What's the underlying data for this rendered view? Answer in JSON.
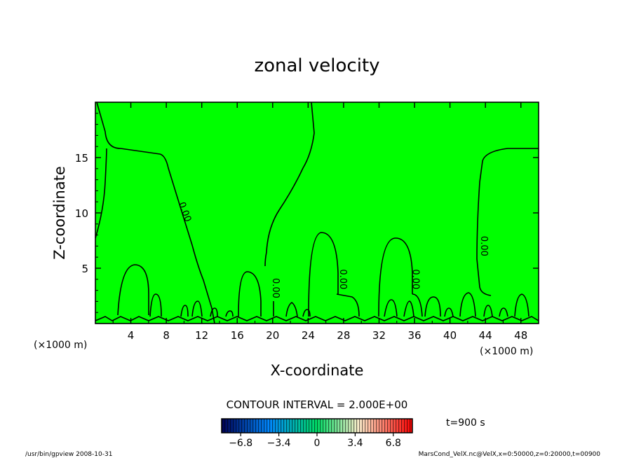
{
  "chart_data": {
    "type": "heatmap",
    "title": "zonal velocity",
    "xlabel": "X-coordinate",
    "ylabel": "Z-coordinate",
    "x_unit_left": "(×1000 m)",
    "x_unit_right": "(×1000 m)",
    "x_ticks": [
      4,
      8,
      12,
      16,
      20,
      24,
      28,
      32,
      36,
      40,
      44,
      48
    ],
    "y_ticks": [
      5,
      10,
      15
    ],
    "xlim": [
      0,
      50
    ],
    "ylim": [
      0,
      20
    ],
    "fill_color": "#00ff00",
    "contour_labels": [
      {
        "text": "0.00",
        "x": 9.8,
        "z": 10.0,
        "rotate": 70
      },
      {
        "text": "0.00",
        "x": 20.0,
        "z": 3.2,
        "rotate": 90
      },
      {
        "text": "0.00",
        "x": 27.6,
        "z": 4.0,
        "rotate": 90
      },
      {
        "text": "0.00",
        "x": 35.8,
        "z": 4.0,
        "rotate": 90
      },
      {
        "text": "0.00",
        "x": 43.5,
        "z": 7.0,
        "rotate": 90
      }
    ],
    "contour_interval_text": "CONTOUR INTERVAL = 2.000E+00",
    "time_label": "t=900 s",
    "colorbar": {
      "min": -8.5,
      "max": 8.5,
      "tick_values": [
        -6.8,
        -3.4,
        0,
        3.4,
        6.8
      ],
      "tick_labels": [
        "−6.8",
        "−3.4",
        "0",
        "3.4",
        "6.8"
      ],
      "colors": [
        "#000055",
        "#00ffff",
        "#00ff00",
        "#ffffff",
        "#ff0000"
      ]
    }
  },
  "footer": {
    "left": "/usr/bin/gpview   2008-10-31",
    "right": "MarsCond_VelX.nc@VelX,x=0:50000,z=0:20000,t=00900"
  }
}
